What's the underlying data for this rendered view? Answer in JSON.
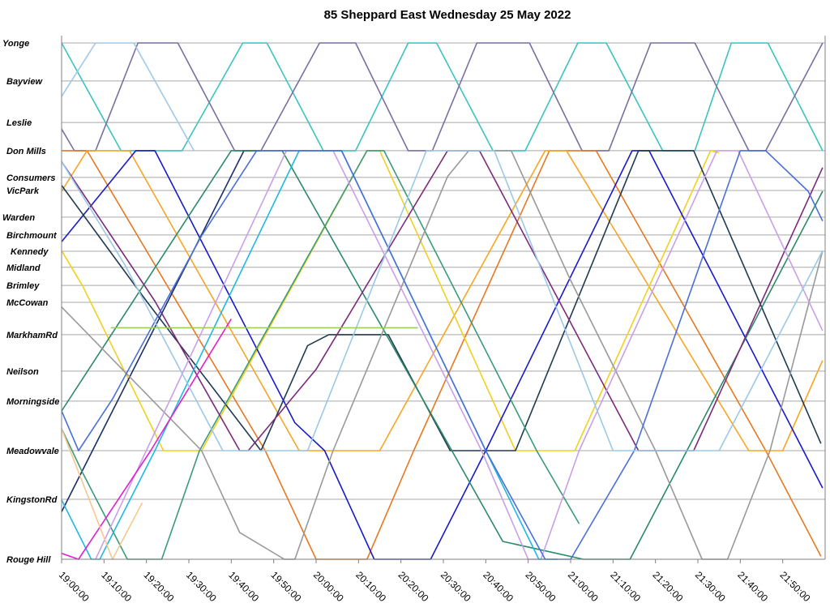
{
  "chart_data": {
    "type": "line",
    "title": "85 Sheppard East Wednesday 25 May 2022",
    "xlabel": "",
    "ylabel": "",
    "x_unit": "minutes after 19:00:00",
    "xlim": [
      0,
      180
    ],
    "y_unit": "km from Yonge (approx.)",
    "ylim": [
      0,
      17.4
    ],
    "grid": true,
    "legend": "none",
    "x_ticks": [
      "19:00:00",
      "19:10:00",
      "19:20:00",
      "19:30:00",
      "19:40:00",
      "19:50:00",
      "20:00:00",
      "20:10:00",
      "20:20:00",
      "20:30:00",
      "20:40:00",
      "20:50:00",
      "21:00:00",
      "21:10:00",
      "21:20:00",
      "21:30:00",
      "21:40:00",
      "21:50:00"
    ],
    "stations": [
      {
        "name": "Yonge",
        "km": 0
      },
      {
        "name": "Bayview",
        "km": 1.28
      },
      {
        "name": "Leslie",
        "km": 2.68
      },
      {
        "name": "Don Mills",
        "km": 3.63
      },
      {
        "name": "Consumers",
        "km": 4.53
      },
      {
        "name": "VicPark",
        "km": 4.97
      },
      {
        "name": "Warden",
        "km": 5.87
      },
      {
        "name": "Birchmount",
        "km": 6.47
      },
      {
        "name": "Kennedy",
        "km": 7.02
      },
      {
        "name": "Midland",
        "km": 7.56
      },
      {
        "name": "Brimley",
        "km": 8.17
      },
      {
        "name": "McCowan",
        "km": 8.74
      },
      {
        "name": "MarkhamRd",
        "km": 9.83
      },
      {
        "name": "Neilson",
        "km": 11.06
      },
      {
        "name": "Morningside",
        "km": 12.07
      },
      {
        "name": "Meadowvale",
        "km": 13.74
      },
      {
        "name": "KingstonRd",
        "km": 15.38
      },
      {
        "name": "Rouge Hill",
        "km": 17.4
      }
    ],
    "series": [
      {
        "color": "#3cc3c0",
        "points": [
          [
            0,
            0
          ],
          [
            14,
            3.63
          ],
          [
            28.4,
            3.63
          ],
          [
            42.7,
            0
          ],
          [
            48.4,
            0
          ],
          [
            61.7,
            3.63
          ],
          [
            69.3,
            3.63
          ],
          [
            81.7,
            0
          ],
          [
            88.4,
            0
          ],
          [
            101.7,
            3.63
          ],
          [
            109.3,
            3.63
          ],
          [
            121.7,
            0
          ],
          [
            128.4,
            0
          ],
          [
            141.7,
            3.63
          ],
          [
            149.3,
            3.63
          ],
          [
            157.9,
            0
          ],
          [
            166.5,
            0
          ],
          [
            179.4,
            3.63
          ]
        ]
      },
      {
        "color": "#7a6fa0",
        "points": [
          [
            0,
            2.9
          ],
          [
            3,
            3.63
          ],
          [
            8,
            3.63
          ],
          [
            18,
            0
          ],
          [
            27.4,
            0
          ],
          [
            40.8,
            3.63
          ],
          [
            47,
            3.63
          ],
          [
            60.8,
            0
          ],
          [
            69.3,
            0
          ],
          [
            81.7,
            3.63
          ],
          [
            87.4,
            3.63
          ],
          [
            97.9,
            0
          ],
          [
            110.3,
            0
          ],
          [
            122.7,
            3.63
          ],
          [
            129,
            3.63
          ],
          [
            138.9,
            0
          ],
          [
            149.3,
            0
          ],
          [
            162,
            3.63
          ],
          [
            166,
            3.63
          ],
          [
            179.4,
            0
          ]
        ]
      },
      {
        "color": "#a0c8e8",
        "points": [
          [
            0,
            1.8
          ],
          [
            8,
            0
          ],
          [
            17,
            0
          ],
          [
            31.2,
            3.63
          ]
        ]
      },
      {
        "color": "#e87820",
        "points": [
          [
            0,
            3.63
          ],
          [
            6,
            3.63
          ],
          [
            48,
            13.74
          ],
          [
            60,
            17.4
          ],
          [
            72,
            17.4
          ],
          [
            83,
            13.74
          ],
          [
            115,
            3.63
          ],
          [
            126,
            3.63
          ],
          [
            166,
            13.74
          ],
          [
            179,
            17.3
          ]
        ]
      },
      {
        "color": "#f5a623",
        "points": [
          [
            0,
            5.0
          ],
          [
            6,
            3.63
          ],
          [
            16,
            3.63
          ],
          [
            56,
            13.74
          ],
          [
            75,
            13.74
          ],
          [
            114,
            3.63
          ],
          [
            119,
            3.63
          ],
          [
            162,
            13.74
          ],
          [
            170,
            13.74
          ],
          [
            179.4,
            10.7
          ]
        ]
      },
      {
        "color": "#f0d020",
        "points": [
          [
            0,
            7.0
          ],
          [
            5,
            8.2
          ],
          [
            24,
            13.74
          ],
          [
            33,
            13.74
          ],
          [
            72,
            3.63
          ],
          [
            75,
            3.63
          ],
          [
            107,
            13.74
          ],
          [
            121,
            13.74
          ],
          [
            153,
            3.63
          ],
          [
            155,
            3.7
          ]
        ]
      },
      {
        "color": "#1a1ac8",
        "points": [
          [
            0,
            6.7
          ],
          [
            17.5,
            3.63
          ],
          [
            22,
            3.63
          ],
          [
            55,
            12.8
          ],
          [
            62,
            13.74
          ],
          [
            73.7,
            17.4
          ],
          [
            87,
            17.4
          ],
          [
            100,
            13.74
          ],
          [
            134.5,
            3.63
          ],
          [
            138.5,
            3.63
          ],
          [
            179.4,
            15.0
          ]
        ]
      },
      {
        "color": "#1c2f66",
        "points": [
          [
            0,
            15.8
          ],
          [
            43,
            3.63
          ],
          [
            47,
            3.63
          ]
        ]
      },
      {
        "color": "#203a50",
        "points": [
          [
            0,
            4.8
          ],
          [
            20,
            8.7
          ],
          [
            47,
            13.74
          ],
          [
            58,
            10.2
          ],
          [
            63,
            9.83
          ],
          [
            77,
            9.83
          ],
          [
            91.6,
            13.74
          ],
          [
            107,
            13.74
          ],
          [
            136,
            3.63
          ],
          [
            149,
            3.63
          ],
          [
            179,
            13.5
          ]
        ]
      },
      {
        "color": "#2a8a6a",
        "points": [
          [
            0,
            12.4
          ],
          [
            40,
            3.63
          ],
          [
            52,
            3.63
          ],
          [
            92,
            13.74
          ],
          [
            104,
            16.8
          ],
          [
            123,
            17.4
          ],
          [
            134,
            17.4
          ],
          [
            179.4,
            5.0
          ]
        ]
      },
      {
        "color": "#3a9a7a",
        "points": [
          [
            0,
            13.0
          ],
          [
            5,
            14.5
          ],
          [
            15.5,
            17.4
          ],
          [
            23.6,
            17.4
          ],
          [
            32.5,
            13.74
          ],
          [
            72,
            3.63
          ],
          [
            76,
            3.63
          ],
          [
            112,
            13.74
          ],
          [
            122,
            16.2
          ]
        ]
      },
      {
        "color": "#999999",
        "points": [
          [
            0,
            8.9
          ],
          [
            33,
            13.74
          ],
          [
            42,
            16.5
          ],
          [
            52.5,
            17.4
          ],
          [
            55,
            17.4
          ],
          [
            64,
            13.74
          ],
          [
            91,
            4.5
          ],
          [
            96,
            3.63
          ],
          [
            106,
            3.63
          ],
          [
            120,
            8.0
          ],
          [
            140,
            13.74
          ],
          [
            151,
            17.4
          ],
          [
            157,
            17.4
          ],
          [
            167,
            13.74
          ],
          [
            179.4,
            7.0
          ]
        ]
      },
      {
        "color": "#7b2a7b",
        "points": [
          [
            0,
            4.0
          ],
          [
            22,
            8.7
          ],
          [
            42,
            13.74
          ],
          [
            44,
            13.74
          ],
          [
            60,
            11.0
          ],
          [
            91,
            3.63
          ],
          [
            98.5,
            3.63
          ],
          [
            136,
            13.74
          ],
          [
            149,
            13.74
          ],
          [
            179.4,
            4.2
          ]
        ]
      },
      {
        "color": "#c8a0e8",
        "points": [
          [
            8,
            17.4
          ],
          [
            53,
            3.63
          ],
          [
            64,
            3.63
          ],
          [
            99,
            13.74
          ],
          [
            110,
            17.4
          ],
          [
            113,
            17.4
          ],
          [
            122,
            13.74
          ],
          [
            154.5,
            3.63
          ],
          [
            159.5,
            3.63
          ],
          [
            179.4,
            9.7
          ]
        ]
      },
      {
        "color": "#20b8e0",
        "points": [
          [
            0,
            15.4
          ],
          [
            7,
            17.4
          ],
          [
            9,
            17.4
          ],
          [
            22,
            13.74
          ],
          [
            56,
            3.63
          ],
          [
            66,
            3.63
          ],
          [
            100,
            13.74
          ],
          [
            112.5,
            17.4
          ],
          [
            117,
            17.4
          ]
        ]
      },
      {
        "color": "#4a70d8",
        "points": [
          [
            0,
            12.4
          ],
          [
            4,
            13.74
          ],
          [
            12,
            12.0
          ],
          [
            33,
            6.5
          ],
          [
            46,
            3.63
          ],
          [
            66,
            3.63
          ],
          [
            100,
            13.74
          ],
          [
            114,
            17.4
          ],
          [
            120,
            17.4
          ],
          [
            135,
            13.74
          ],
          [
            160,
            3.63
          ],
          [
            166,
            3.63
          ],
          [
            176,
            5.0
          ],
          [
            179.4,
            6.0
          ]
        ]
      },
      {
        "color": "#e020d0",
        "points": [
          [
            0,
            17.2
          ],
          [
            4,
            17.4
          ],
          [
            21,
            13.74
          ],
          [
            40,
            9.3
          ]
        ]
      },
      {
        "color": "#9cc8e8",
        "points": [
          [
            0,
            4.0
          ],
          [
            15,
            7.5
          ],
          [
            38,
            13.74
          ],
          [
            58,
            13.74
          ],
          [
            86,
            3.63
          ],
          [
            102,
            3.63
          ],
          [
            130,
            13.74
          ],
          [
            155,
            13.74
          ],
          [
            179.4,
            7.0
          ]
        ]
      },
      {
        "color": "#f5c890",
        "points": [
          [
            0,
            13.0
          ],
          [
            12,
            17.4
          ],
          [
            19,
            15.5
          ]
        ]
      },
      {
        "color": "#9acd60",
        "points": [
          [
            11.6,
            9.6
          ],
          [
            84,
            9.6
          ]
        ]
      }
    ]
  }
}
